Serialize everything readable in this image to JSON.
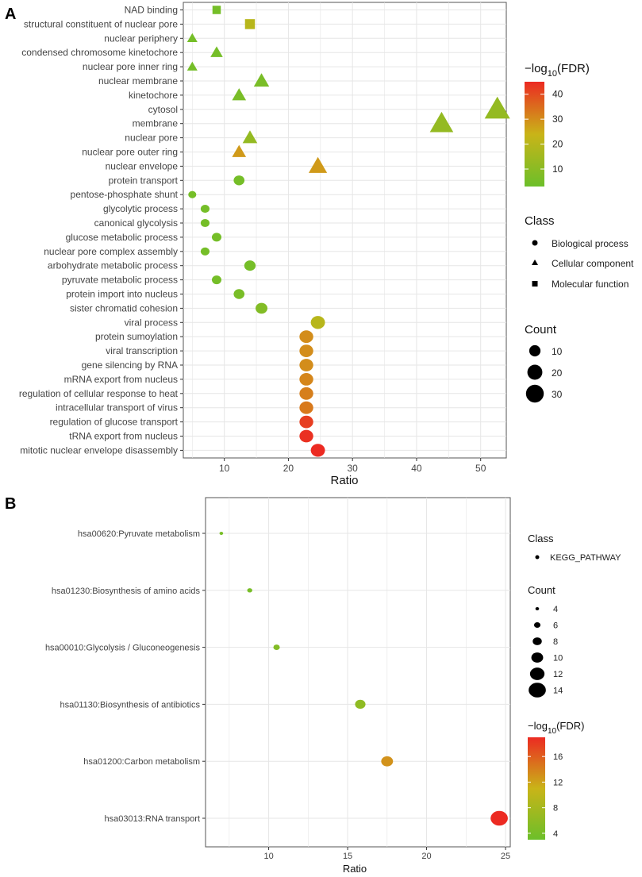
{
  "panel_labels": {
    "a": "A",
    "b": "B"
  },
  "colors": {
    "fdr_low": "#6cbf2a",
    "fdr_mid": "#c9b418",
    "fdr_high": "#ec2a22",
    "panel_a_bg": "#ffffff",
    "grid": "#e6e6e6"
  },
  "chart_data": [
    {
      "type": "scatter",
      "title": "",
      "xlabel": "Ratio",
      "ylabel": "",
      "xlim": [
        3.6,
        54
      ],
      "xticks": [
        10,
        20,
        30,
        40,
        50
      ],
      "legend": {
        "fdr_title_prefix": "−log",
        "fdr_title_sub": "10",
        "fdr_title_suffix": "(FDR)",
        "fdr_range": [
          3,
          45
        ],
        "fdr_ticks": [
          10,
          20,
          30,
          40
        ],
        "class_title": "Class",
        "classes": [
          "Biological process",
          "Cellular component",
          "Molecular function"
        ],
        "count_title": "Count",
        "count_breaks": [
          10,
          20,
          30
        ]
      },
      "categories": [
        "NAD binding",
        "structural constituent of nuclear pore",
        "nuclear periphery",
        "condensed chromosome kinetochore",
        "nuclear pore inner ring",
        "nuclear membrane",
        "kinetochore",
        "cytosol",
        "membrane",
        "nuclear pore",
        "nuclear pore outer ring",
        "nuclear envelope",
        "protein transport",
        "pentose-phosphate shunt",
        "glycolytic process",
        "canonical glycolysis",
        "glucose metabolic process",
        "nuclear pore complex assembly",
        "arbohydrate metabolic process",
        "pyruvate metabolic process",
        "protein import into nucleus",
        "sister chromatid cohesion",
        "viral process",
        "protein sumoylation",
        "viral transcription",
        "gene silencing by RNA",
        "mRNA export from nucleus",
        "regulation of cellular response to heat",
        "intracellular transport of virus",
        "regulation of glucose transport",
        "tRNA export from nucleus",
        "mitotic nuclear envelope disassembly"
      ],
      "points": [
        {
          "term": "NAD binding",
          "ratio": 8.8,
          "fdr": 5,
          "count": 5,
          "class": "Molecular function"
        },
        {
          "term": "structural constituent of nuclear pore",
          "ratio": 14.0,
          "fdr": 20,
          "count": 8,
          "class": "Molecular function"
        },
        {
          "term": "nuclear periphery",
          "ratio": 5.0,
          "fdr": 5,
          "count": 3,
          "class": "Cellular component"
        },
        {
          "term": "condensed chromosome kinetochore",
          "ratio": 8.8,
          "fdr": 5,
          "count": 5,
          "class": "Cellular component"
        },
        {
          "term": "nuclear pore inner ring",
          "ratio": 5.0,
          "fdr": 5,
          "count": 3,
          "class": "Cellular component"
        },
        {
          "term": "nuclear membrane",
          "ratio": 15.8,
          "fdr": 6,
          "count": 9,
          "class": "Cellular component"
        },
        {
          "term": "kinetochore",
          "ratio": 12.3,
          "fdr": 6,
          "count": 7,
          "class": "Cellular component"
        },
        {
          "term": "cytosol",
          "ratio": 52.6,
          "fdr": 12,
          "count": 30,
          "class": "Cellular component"
        },
        {
          "term": "membrane",
          "ratio": 43.9,
          "fdr": 12,
          "count": 25,
          "class": "Cellular component"
        },
        {
          "term": "nuclear pore",
          "ratio": 14.0,
          "fdr": 12,
          "count": 8,
          "class": "Cellular component"
        },
        {
          "term": "nuclear pore outer ring",
          "ratio": 12.3,
          "fdr": 28,
          "count": 7,
          "class": "Cellular component"
        },
        {
          "term": "nuclear envelope",
          "ratio": 24.6,
          "fdr": 28,
          "count": 14,
          "class": "Cellular component"
        },
        {
          "term": "protein transport",
          "ratio": 12.3,
          "fdr": 5,
          "count": 7,
          "class": "Biological process"
        },
        {
          "term": "pentose-phosphate shunt",
          "ratio": 5.0,
          "fdr": 5,
          "count": 3,
          "class": "Biological process"
        },
        {
          "term": "glycolytic process",
          "ratio": 7.0,
          "fdr": 5,
          "count": 4,
          "class": "Biological process"
        },
        {
          "term": "canonical glycolysis",
          "ratio": 7.0,
          "fdr": 5,
          "count": 4,
          "class": "Biological process"
        },
        {
          "term": "glucose metabolic process",
          "ratio": 8.8,
          "fdr": 5,
          "count": 5,
          "class": "Biological process"
        },
        {
          "term": "nuclear pore complex assembly",
          "ratio": 7.0,
          "fdr": 5,
          "count": 4,
          "class": "Biological process"
        },
        {
          "term": "arbohydrate metabolic process",
          "ratio": 14.0,
          "fdr": 5,
          "count": 8,
          "class": "Biological process"
        },
        {
          "term": "pyruvate metabolic process",
          "ratio": 8.8,
          "fdr": 5,
          "count": 5,
          "class": "Biological process"
        },
        {
          "term": "protein import into nucleus",
          "ratio": 12.3,
          "fdr": 6,
          "count": 7,
          "class": "Biological process"
        },
        {
          "term": "sister chromatid cohesion",
          "ratio": 15.8,
          "fdr": 8,
          "count": 9,
          "class": "Biological process"
        },
        {
          "term": "viral process",
          "ratio": 24.6,
          "fdr": 20,
          "count": 14,
          "class": "Biological process"
        },
        {
          "term": "protein sumoylation",
          "ratio": 22.8,
          "fdr": 30,
          "count": 13,
          "class": "Biological process"
        },
        {
          "term": "viral transcription",
          "ratio": 22.8,
          "fdr": 30,
          "count": 13,
          "class": "Biological process"
        },
        {
          "term": "gene silencing by RNA",
          "ratio": 22.8,
          "fdr": 30,
          "count": 13,
          "class": "Biological process"
        },
        {
          "term": "mRNA export from nucleus",
          "ratio": 22.8,
          "fdr": 31,
          "count": 13,
          "class": "Biological process"
        },
        {
          "term": "regulation of cellular response to heat",
          "ratio": 22.8,
          "fdr": 32,
          "count": 13,
          "class": "Biological process"
        },
        {
          "term": "intracellular transport of virus",
          "ratio": 22.8,
          "fdr": 33,
          "count": 13,
          "class": "Biological process"
        },
        {
          "term": "regulation of glucose transport",
          "ratio": 22.8,
          "fdr": 42,
          "count": 13,
          "class": "Biological process"
        },
        {
          "term": "tRNA export from nucleus",
          "ratio": 22.8,
          "fdr": 44,
          "count": 13,
          "class": "Biological process"
        },
        {
          "term": "mitotic nuclear envelope disassembly",
          "ratio": 24.6,
          "fdr": 45,
          "count": 14,
          "class": "Biological process"
        }
      ]
    },
    {
      "type": "scatter",
      "title": "",
      "xlabel": "Ratio",
      "ylabel": "",
      "xlim": [
        6.0,
        25.3
      ],
      "xticks": [
        10,
        15,
        20,
        25
      ],
      "legend": {
        "class_title": "Class",
        "classes": [
          "KEGG_PATHWAY"
        ],
        "count_title": "Count",
        "count_breaks": [
          4,
          6,
          8,
          10,
          12,
          14
        ],
        "fdr_title_prefix": "−log",
        "fdr_title_sub": "10",
        "fdr_title_suffix": "(FDR)",
        "fdr_range": [
          3,
          19
        ],
        "fdr_ticks": [
          4,
          8,
          12,
          16
        ]
      },
      "categories": [
        "hsa00620:Pyruvate metabolism",
        "hsa01230:Biosynthesis of amino acids",
        "hsa00010:Glycolysis / Gluconeogenesis",
        "hsa01130:Biosynthesis of antibiotics",
        "hsa01200:Carbon metabolism",
        "hsa03013:RNA transport"
      ],
      "points": [
        {
          "term": "hsa00620:Pyruvate metabolism",
          "ratio": 7.0,
          "fdr": 4,
          "count": 4,
          "class": "KEGG_PATHWAY"
        },
        {
          "term": "hsa01230:Biosynthesis of amino acids",
          "ratio": 8.8,
          "fdr": 4,
          "count": 5,
          "class": "KEGG_PATHWAY"
        },
        {
          "term": "hsa00010:Glycolysis / Gluconeogenesis",
          "ratio": 10.5,
          "fdr": 5,
          "count": 6,
          "class": "KEGG_PATHWAY"
        },
        {
          "term": "hsa01130:Biosynthesis of antibiotics",
          "ratio": 15.8,
          "fdr": 6,
          "count": 9,
          "class": "KEGG_PATHWAY"
        },
        {
          "term": "hsa01200:Carbon metabolism",
          "ratio": 17.5,
          "fdr": 13,
          "count": 10,
          "class": "KEGG_PATHWAY"
        },
        {
          "term": "hsa03013:RNA transport",
          "ratio": 24.6,
          "fdr": 19,
          "count": 14,
          "class": "KEGG_PATHWAY"
        }
      ]
    }
  ]
}
